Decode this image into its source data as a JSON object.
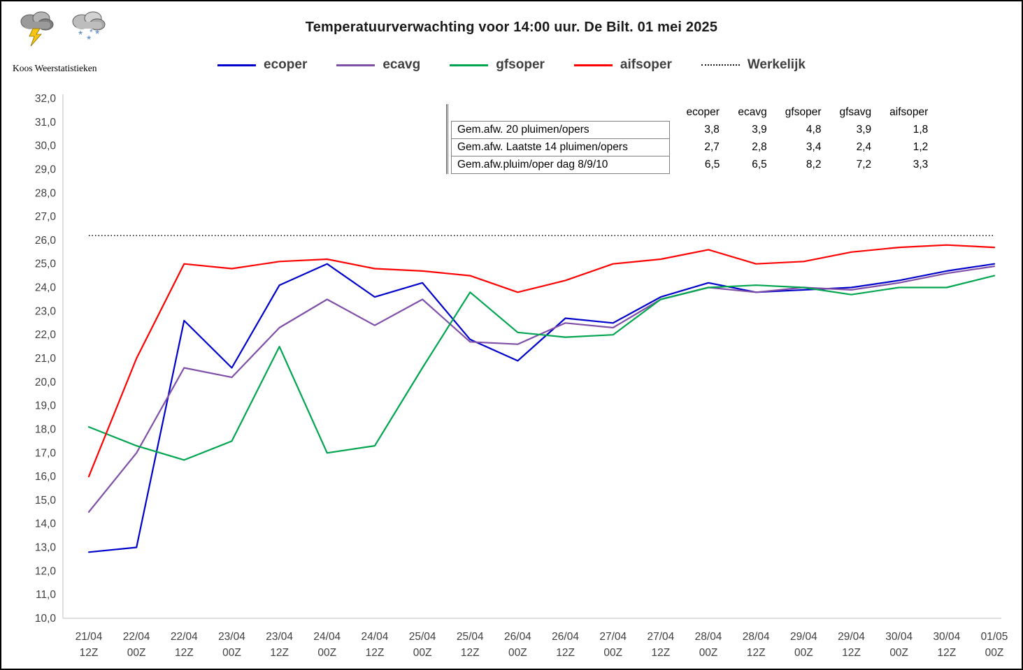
{
  "brand": "Koos Weerstatistieken",
  "title": "Temperatuurverwachting voor 14:00 uur. De Bilt. 01 mei 2025",
  "colors": {
    "ecoper": "#0000cc",
    "ecavg": "#8050a8",
    "gfsoper": "#00a550",
    "aifsoper": "#ff0000",
    "werkelijk": "#1a1a1a",
    "axis": "#bfbfbf",
    "tick_text": "#404040"
  },
  "legend": [
    {
      "label": "ecoper",
      "color": "#0000cc",
      "style": "solid"
    },
    {
      "label": "ecavg",
      "color": "#8050a8",
      "style": "solid"
    },
    {
      "label": "gfsoper",
      "color": "#00a550",
      "style": "solid"
    },
    {
      "label": "aifsoper",
      "color": "#ff0000",
      "style": "solid"
    },
    {
      "label": "Werkelijk",
      "color": "#1a1a1a",
      "style": "dotted"
    }
  ],
  "stats_table": {
    "columns": [
      "ecoper",
      "ecavg",
      "gfsoper",
      "gfsavg",
      "aifsoper"
    ],
    "rows": [
      {
        "label": "Gem.afw. 20 pluimen/opers",
        "values": [
          "3,8",
          "3,9",
          "4,8",
          "3,9",
          "1,8"
        ]
      },
      {
        "label": "Gem.afw. Laatste 14 pluimen/opers",
        "values": [
          "2,7",
          "2,8",
          "3,4",
          "2,4",
          "1,2"
        ]
      },
      {
        "label": "Gem.afw.pluim/oper dag 8/9/10",
        "values": [
          "6,5",
          "6,5",
          "8,2",
          "7,2",
          "3,3"
        ]
      }
    ]
  },
  "chart_data": {
    "type": "line",
    "title": "Temperatuurverwachting voor 14:00 uur. De Bilt. 01 mei 2025",
    "xlabel": "",
    "ylabel": "",
    "ylim": [
      10,
      32
    ],
    "ytick_step": 1,
    "ytick_labels": [
      "32,0",
      "31,0",
      "30,0",
      "29,0",
      "28,0",
      "27,0",
      "26,0",
      "25,0",
      "24,0",
      "23,0",
      "22,0",
      "21,0",
      "20,0",
      "19,0",
      "18,0",
      "17,0",
      "16,0",
      "15,0",
      "14,0",
      "13,0",
      "12,0",
      "11,0",
      "10,0"
    ],
    "grid": false,
    "legend_position": "top",
    "x_categories": [
      {
        "date": "21/04",
        "hour": "12Z"
      },
      {
        "date": "22/04",
        "hour": "00Z"
      },
      {
        "date": "22/04",
        "hour": "12Z"
      },
      {
        "date": "23/04",
        "hour": "00Z"
      },
      {
        "date": "23/04",
        "hour": "12Z"
      },
      {
        "date": "24/04",
        "hour": "00Z"
      },
      {
        "date": "24/04",
        "hour": "12Z"
      },
      {
        "date": "25/04",
        "hour": "00Z"
      },
      {
        "date": "25/04",
        "hour": "12Z"
      },
      {
        "date": "26/04",
        "hour": "00Z"
      },
      {
        "date": "26/04",
        "hour": "12Z"
      },
      {
        "date": "27/04",
        "hour": "00Z"
      },
      {
        "date": "27/04",
        "hour": "12Z"
      },
      {
        "date": "28/04",
        "hour": "00Z"
      },
      {
        "date": "28/04",
        "hour": "12Z"
      },
      {
        "date": "29/04",
        "hour": "00Z"
      },
      {
        "date": "29/04",
        "hour": "12Z"
      },
      {
        "date": "30/04",
        "hour": "00Z"
      },
      {
        "date": "30/04",
        "hour": "12Z"
      },
      {
        "date": "01/05",
        "hour": "00Z"
      }
    ],
    "series": [
      {
        "name": "ecoper",
        "color": "#0000cc",
        "values": [
          12.8,
          13.0,
          22.6,
          20.6,
          24.1,
          25.0,
          23.6,
          24.2,
          21.8,
          20.9,
          22.7,
          22.5,
          23.6,
          24.2,
          23.8,
          23.9,
          24.0,
          24.3,
          24.7,
          25.0
        ]
      },
      {
        "name": "ecavg",
        "color": "#8050a8",
        "values": [
          14.5,
          17.0,
          20.6,
          20.2,
          22.3,
          23.5,
          22.4,
          23.5,
          21.7,
          21.6,
          22.5,
          22.3,
          23.5,
          24.0,
          23.8,
          24.0,
          23.9,
          24.2,
          24.6,
          24.9
        ]
      },
      {
        "name": "gfsoper",
        "color": "#00a550",
        "values": [
          18.1,
          17.3,
          16.7,
          17.5,
          21.5,
          17.0,
          17.3,
          20.6,
          23.8,
          22.1,
          21.9,
          22.0,
          23.5,
          24.0,
          24.1,
          24.0,
          23.7,
          24.0,
          24.0,
          24.5
        ]
      },
      {
        "name": "aifsoper",
        "color": "#ff0000",
        "values": [
          16.0,
          21.0,
          25.0,
          24.8,
          25.1,
          25.2,
          24.8,
          24.7,
          24.5,
          23.8,
          24.3,
          25.0,
          25.2,
          25.6,
          25.0,
          25.1,
          25.5,
          25.7,
          25.8,
          25.7
        ]
      }
    ],
    "reference_line": {
      "name": "Werkelijk",
      "value": 26.2,
      "style": "dotted",
      "color": "#1a1a1a"
    }
  }
}
